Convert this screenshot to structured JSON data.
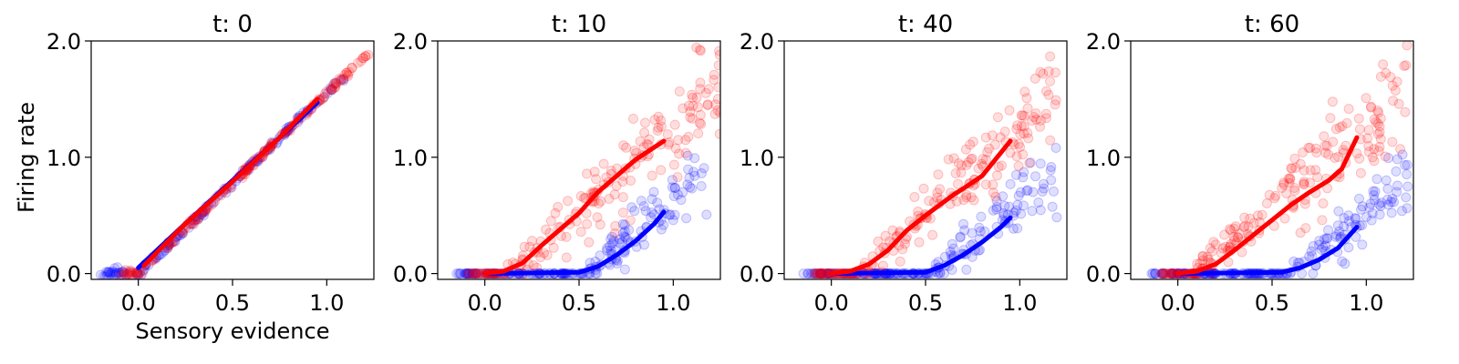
{
  "figure": {
    "ylabel": "Firing rate",
    "xlabel": "Sensory evidence"
  },
  "chart_data": [
    {
      "type": "scatter",
      "title": "t: 0",
      "xlim": [
        -0.25,
        1.25
      ],
      "ylim": [
        -0.05,
        2.0
      ],
      "xticks": [
        "0.0",
        "0.5",
        "1.0"
      ],
      "yticks": [
        "0.0",
        "1.0",
        "2.0"
      ],
      "colors": {
        "blue": "#0000ff",
        "red": "#ff0000"
      },
      "seed": 11,
      "scatter_series": [
        {
          "color": "blue",
          "n": 160,
          "x_range": [
            -0.2,
            1.1
          ],
          "model": "linear",
          "slope": 1.55,
          "offset": 0.0,
          "noise": 0.015
        },
        {
          "color": "red",
          "n": 160,
          "x_range": [
            -0.1,
            1.22
          ],
          "model": "linear",
          "slope": 1.55,
          "offset": 0.0,
          "noise": 0.015
        }
      ],
      "lines": [
        {
          "color": "blue",
          "points": [
            [
              0.0,
              0.05
            ],
            [
              0.25,
              0.43
            ],
            [
              0.5,
              0.8
            ],
            [
              0.75,
              1.17
            ],
            [
              0.95,
              1.47
            ]
          ]
        },
        {
          "color": "red",
          "points": [
            [
              0.03,
              0.07
            ],
            [
              0.25,
              0.43
            ],
            [
              0.5,
              0.79
            ],
            [
              0.75,
              1.17
            ],
            [
              0.95,
              1.5
            ]
          ]
        }
      ]
    },
    {
      "type": "scatter",
      "title": "t: 10",
      "xlim": [
        -0.25,
        1.25
      ],
      "ylim": [
        -0.05,
        2.0
      ],
      "xticks": [
        "0.0",
        "0.5",
        "1.0"
      ],
      "yticks": [
        "0.0",
        "1.0",
        "2.0"
      ],
      "colors": {
        "blue": "#0000ff",
        "red": "#ff0000"
      },
      "seed": 23,
      "scatter_series": [
        {
          "color": "blue",
          "n": 190,
          "x_range": [
            -0.15,
            1.2
          ],
          "model": "relu",
          "threshold": 0.55,
          "slope": 1.4,
          "noise": 0.12
        },
        {
          "color": "red",
          "n": 190,
          "x_range": [
            -0.1,
            1.25
          ],
          "model": "relu",
          "threshold": 0.12,
          "slope": 1.4,
          "noise": 0.12
        }
      ],
      "lines": [
        {
          "color": "blue",
          "points": [
            [
              0.0,
              0.0
            ],
            [
              0.5,
              0.01
            ],
            [
              0.6,
              0.06
            ],
            [
              0.7,
              0.16
            ],
            [
              0.8,
              0.28
            ],
            [
              0.9,
              0.43
            ],
            [
              0.95,
              0.53
            ]
          ]
        },
        {
          "color": "red",
          "points": [
            [
              0.0,
              0.0
            ],
            [
              0.1,
              0.02
            ],
            [
              0.2,
              0.09
            ],
            [
              0.3,
              0.24
            ],
            [
              0.4,
              0.38
            ],
            [
              0.5,
              0.52
            ],
            [
              0.6,
              0.7
            ],
            [
              0.7,
              0.84
            ],
            [
              0.8,
              0.98
            ],
            [
              0.95,
              1.14
            ]
          ]
        }
      ]
    },
    {
      "type": "scatter",
      "title": "t: 40",
      "xlim": [
        -0.25,
        1.25
      ],
      "ylim": [
        -0.05,
        2.0
      ],
      "xticks": [
        "0.0",
        "0.5",
        "1.0"
      ],
      "yticks": [
        "0.0",
        "1.0",
        "2.0"
      ],
      "colors": {
        "blue": "#0000ff",
        "red": "#ff0000"
      },
      "seed": 37,
      "scatter_series": [
        {
          "color": "blue",
          "n": 190,
          "x_range": [
            -0.15,
            1.2
          ],
          "model": "relu",
          "threshold": 0.55,
          "slope": 1.35,
          "noise": 0.12
        },
        {
          "color": "red",
          "n": 190,
          "x_range": [
            -0.1,
            1.2
          ],
          "model": "relu",
          "threshold": 0.15,
          "slope": 1.45,
          "noise": 0.12
        }
      ],
      "lines": [
        {
          "color": "blue",
          "points": [
            [
              0.0,
              0.0
            ],
            [
              0.5,
              0.01
            ],
            [
              0.6,
              0.07
            ],
            [
              0.7,
              0.16
            ],
            [
              0.8,
              0.27
            ],
            [
              0.9,
              0.4
            ],
            [
              0.95,
              0.48
            ]
          ]
        },
        {
          "color": "red",
          "points": [
            [
              0.0,
              0.0
            ],
            [
              0.1,
              0.02
            ],
            [
              0.2,
              0.08
            ],
            [
              0.3,
              0.2
            ],
            [
              0.4,
              0.37
            ],
            [
              0.5,
              0.5
            ],
            [
              0.6,
              0.62
            ],
            [
              0.65,
              0.68
            ],
            [
              0.7,
              0.73
            ],
            [
              0.8,
              0.84
            ],
            [
              0.95,
              1.14
            ]
          ]
        }
      ]
    },
    {
      "type": "scatter",
      "title": "t: 60",
      "xlim": [
        -0.25,
        1.25
      ],
      "ylim": [
        -0.05,
        2.0
      ],
      "xticks": [
        "0.0",
        "0.5",
        "1.0"
      ],
      "yticks": [
        "0.0",
        "1.0",
        "2.0"
      ],
      "colors": {
        "blue": "#0000ff",
        "red": "#ff0000"
      },
      "seed": 53,
      "scatter_series": [
        {
          "color": "blue",
          "n": 200,
          "x_range": [
            -0.15,
            1.22
          ],
          "model": "relu",
          "threshold": 0.6,
          "slope": 1.35,
          "noise": 0.12
        },
        {
          "color": "red",
          "n": 200,
          "x_range": [
            -0.1,
            1.22
          ],
          "model": "relu",
          "threshold": 0.1,
          "slope": 1.4,
          "noise": 0.13
        }
      ],
      "lines": [
        {
          "color": "blue",
          "points": [
            [
              0.0,
              0.0
            ],
            [
              0.55,
              0.01
            ],
            [
              0.65,
              0.05
            ],
            [
              0.75,
              0.12
            ],
            [
              0.85,
              0.22
            ],
            [
              0.95,
              0.4
            ]
          ]
        },
        {
          "color": "red",
          "points": [
            [
              0.0,
              0.0
            ],
            [
              0.1,
              0.02
            ],
            [
              0.2,
              0.08
            ],
            [
              0.3,
              0.2
            ],
            [
              0.4,
              0.33
            ],
            [
              0.5,
              0.46
            ],
            [
              0.6,
              0.59
            ],
            [
              0.7,
              0.7
            ],
            [
              0.8,
              0.8
            ],
            [
              0.87,
              0.9
            ],
            [
              0.95,
              1.17
            ]
          ]
        }
      ]
    }
  ]
}
